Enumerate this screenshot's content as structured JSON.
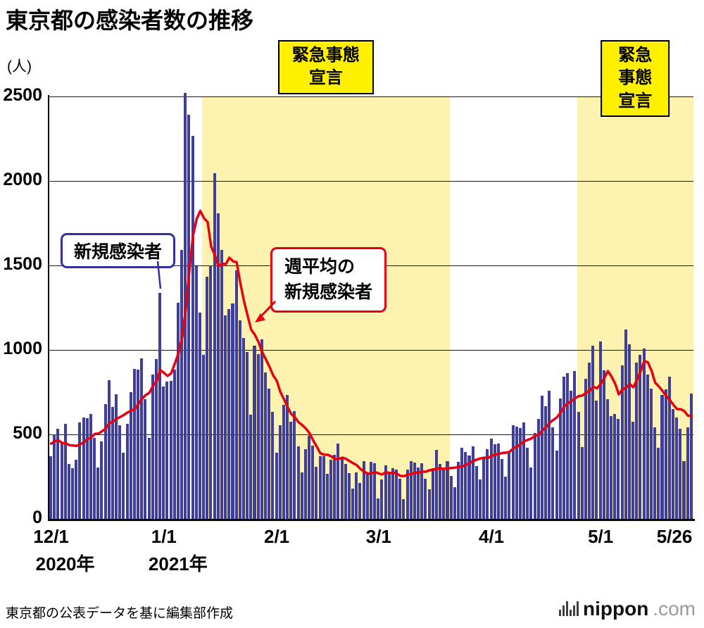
{
  "title": "東京都の感染者数の推移",
  "y_axis": {
    "unit_label": "(人)"
  },
  "annotations": {
    "daily_label": "新規感染者",
    "weekly_line1": "週平均の",
    "weekly_line2": "新規感染者"
  },
  "source_note": "東京都の公表データを基に編集部作成",
  "logo": {
    "brand": "nippon",
    "tld": ".com"
  },
  "colors": {
    "bar": "#3f3f9b",
    "line": "#e60012",
    "band_fill": "#fdf2b0",
    "band_label_bg": "#fff000"
  },
  "chart_data": {
    "type": "bar",
    "title": "東京都の感染者数の推移",
    "ylabel": "(人)",
    "y_max": 2500,
    "y_ticks": [
      0,
      500,
      1000,
      1500,
      2000,
      2500
    ],
    "x_ticks": [
      {
        "label": "12/1",
        "day": 0
      },
      {
        "label": "1/1",
        "day": 31
      },
      {
        "label": "2/1",
        "day": 62
      },
      {
        "label": "3/1",
        "day": 90
      },
      {
        "label": "4/1",
        "day": 121
      },
      {
        "label": "5/1",
        "day": 151
      },
      {
        "label": "5/26",
        "day": 176
      }
    ],
    "year_labels": [
      {
        "label": "2020年",
        "day": 0
      },
      {
        "label": "2021年",
        "day": 31
      }
    ],
    "emergency_bands": [
      {
        "line1": "緊急事態",
        "line2": "宣言",
        "start_day": 42,
        "end_day": 110
      },
      {
        "line1": "緊急事態",
        "line2": "宣言",
        "start_day": 145,
        "end_day": 177
      }
    ],
    "series": [
      {
        "name": "新規感染者",
        "type": "bar",
        "values": [
          372,
          500,
          533,
          449,
          561,
          327,
          299,
          352,
          572,
          602,
          595,
          621,
          480,
          305,
          460,
          678,
          822,
          664,
          736,
          556,
          392,
          563,
          748,
          888,
          884,
          949,
          708,
          481,
          856,
          944,
          1337,
          783,
          814,
          816,
          884,
          1278,
          1591,
          2520,
          2392,
          2268,
          1494,
          1219,
          970,
          1433,
          1502,
          2044,
          1809,
          1592,
          1204,
          1240,
          1274,
          1471,
          1175,
          1070,
          986,
          618,
          1026,
          973,
          1064,
          868,
          769,
          633,
          393,
          556,
          676,
          734,
          577,
          639,
          429,
          276,
          412,
          491,
          434,
          307,
          369,
          371,
          266,
          350,
          378,
          445,
          353,
          327,
          272,
          178,
          275,
          213,
          340,
          270,
          337,
          329,
          121,
          232,
          316,
          279,
          301,
          293,
          237,
          116,
          290,
          340,
          335,
          304,
          330,
          239,
          175,
          300,
          409,
          323,
          303,
          342,
          256,
          187,
          337,
          420,
          394,
          376,
          430,
          313,
          234,
          364,
          414,
          475,
          440,
          446,
          355,
          249,
          399,
          555,
          545,
          537,
          570,
          421,
          306,
          510,
          591,
          729,
          667,
          759,
          543,
          405,
          711,
          843,
          861,
          759,
          876,
          635,
          425,
          828,
          925,
          1027,
          698,
          1050,
          879,
          708,
          609,
          621,
          591,
          907,
          1121,
          1032,
          573,
          925,
          969,
          1010,
          854,
          772,
          542,
          419,
          732,
          766,
          843,
          649,
          602,
          535,
          340,
          542,
          743
        ]
      },
      {
        "name": "週平均の新規感染者",
        "type": "line",
        "values": [
          445,
          459,
          466,
          449,
          449,
          436,
          434,
          432,
          442,
          452,
          473,
          481,
          503,
          504,
          519,
          534,
          566,
          576,
          592,
          603,
          615,
          630,
          640,
          650,
          681,
          711,
          733,
          746,
          788,
          816,
          880,
          865,
          846,
          862,
          919,
          979,
          1072,
          1241,
          1471,
          1678,
          1775,
          1823,
          1779,
          1757,
          1611,
          1561,
          1496,
          1510,
          1508,
          1546,
          1524,
          1519,
          1395,
          1289,
          1203,
          1119,
          1089,
          1046,
          987,
          944,
          901,
          850,
          818,
          751,
          708,
          661,
          620,
          601,
          572,
          555,
          535,
          508,
          465,
          427,
          388,
          380,
          379,
          370,
          354,
          355,
          362,
          356,
          342,
          329,
          318,
          295,
          280,
          268,
          269,
          277,
          269,
          263,
          278,
          269,
          274,
          267,
          254,
          253,
          262,
          265,
          273,
          274,
          279,
          279,
          288,
          289,
          299,
          297,
          297,
          299,
          301,
          303,
          308,
          310,
          320,
          330,
          343,
          351,
          358,
          362,
          361,
          372,
          381,
          384,
          390,
          392,
          397,
          417,
          427,
          441,
          459,
          468,
          476,
          492,
          497,
          523,
          542,
          569,
          586,
          601,
          629,
          665,
          684,
          697,
          714,
          727,
          730,
          747,
          758,
          782,
          773,
          798,
          833,
          874,
          842,
          799,
          737,
          766,
          777,
          798,
          779,
          824,
          874,
          934,
          926,
          876,
          806,
          784,
          757,
          728,
          704,
          675,
          650,
          649,
          638,
          611,
          608
        ]
      }
    ]
  }
}
